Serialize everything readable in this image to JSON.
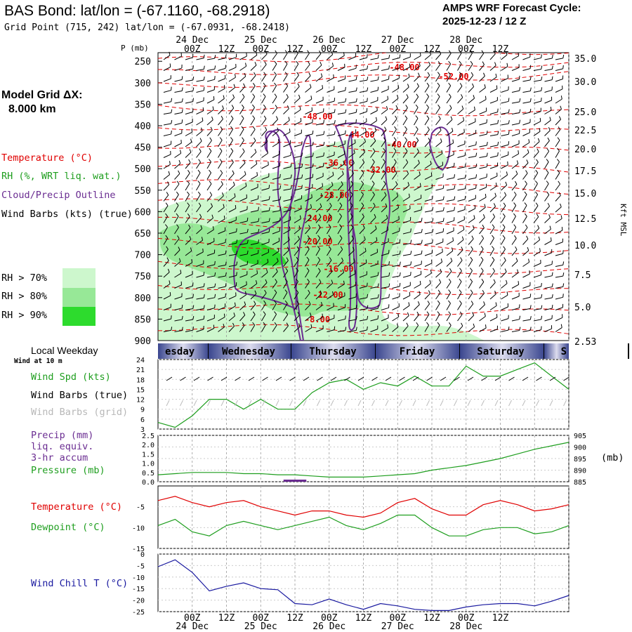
{
  "header": {
    "title": "BAS Bond:  lat/lon = (-67.1160, -68.2918)",
    "grid_point": "Grid Point (715, 242) lat/lon = (-67.0931, -68.2418)",
    "cycle_label": "AMPS WRF Forecast Cycle:",
    "cycle_value": "2025-12-23 / 12  Z",
    "model_grid_label": "Model Grid ΔX:",
    "model_grid_value": "8.000 km"
  },
  "legend": {
    "temperature": "Temperature (°C)",
    "rh": "RH (%, WRT liq. wat.)",
    "cloud": "Cloud/Precip Outline",
    "wind_barbs": "Wind Barbs (kts) (true)",
    "rh70": "RH > 70%",
    "rh80": "RH > 80%",
    "rh90": "RH > 90%",
    "colors": {
      "rh70": "#cdf7cd",
      "rh80": "#97e897",
      "rh90": "#2ddb2d",
      "temp": "#e00000",
      "cloud": "#6a2c91",
      "wind": "#1e9e1e",
      "wind_chill": "#1a1aa0"
    }
  },
  "time_axis": {
    "top_labels": [
      "24 Dec",
      "25 Dec",
      "26 Dec",
      "27 Dec",
      "28 Dec"
    ],
    "hour_labels": [
      "00Z",
      "12Z",
      "00Z",
      "12Z",
      "00Z",
      "12Z",
      "00Z",
      "12Z",
      "00Z",
      "12Z"
    ],
    "weekday_label": "Local Weekday",
    "weekdays": [
      "Tuesday",
      "Wednesday",
      "Thursday",
      "Friday",
      "Saturday",
      "Sunday"
    ],
    "weekday_visible": [
      "esday",
      "Wednesday",
      "Thursday",
      "Friday",
      "Saturday",
      "S"
    ],
    "wind_at": "Wind at 10 m"
  },
  "chart_data": [
    {
      "type": "contour",
      "title": "Vertical cross-section time series",
      "ylabel": "P (mb)",
      "y2label": "Kft MSL",
      "pressure_ticks": [
        250,
        300,
        350,
        400,
        450,
        500,
        550,
        600,
        650,
        700,
        750,
        800,
        850,
        900
      ],
      "kft_ticks": [
        "35.0",
        "30.0",
        "25.0",
        "22.5",
        "20.0",
        "17.5",
        "15.0",
        "12.5",
        "10.0",
        "7.5",
        "5.0",
        "2.53"
      ],
      "temperature_contour_labels": [
        "-48.00",
        "-52.00",
        "-48.00",
        "-44.00",
        "-40.00",
        "-36.00",
        "-32.00",
        "-28.00",
        "-24.00",
        "-20.00",
        "-16.00",
        "-12.00",
        "-8.00"
      ],
      "ylim": [
        900,
        230
      ]
    },
    {
      "type": "line",
      "title": "Wind Spd (kts)",
      "legend": [
        "Wind Spd (kts)",
        "Wind Barbs (true)",
        "Wind Barbs (grid)"
      ],
      "yticks": [
        3,
        6,
        9,
        12,
        15,
        18,
        21,
        24
      ],
      "ylim": [
        3,
        24
      ],
      "x_hours": [
        0,
        6,
        12,
        18,
        24,
        30,
        36,
        42,
        48,
        54,
        60,
        66,
        72,
        78,
        84,
        90,
        96,
        102,
        108,
        114,
        120,
        126,
        132,
        138,
        144
      ],
      "values": [
        5,
        3.5,
        7,
        12,
        12,
        9,
        12,
        9,
        9,
        14,
        17,
        18,
        15,
        17,
        16,
        19,
        16,
        16,
        22,
        19,
        19,
        21,
        23,
        19,
        15
      ]
    },
    {
      "type": "line",
      "title": "Precip (mm) / Pressure (mb)",
      "legend": [
        "Precip (mm)",
        "liq. equiv.",
        "3-hr accum",
        "Pressure (mb)"
      ],
      "precip_ticks": [
        "0.0",
        "0.5",
        "1.0",
        "1.5",
        "2.0",
        "2.5"
      ],
      "pressure_ticks": [
        "885",
        "890",
        "895",
        "900",
        "905"
      ],
      "pressure_unit": "(mb)",
      "x_hours": [
        0,
        6,
        12,
        18,
        24,
        30,
        36,
        42,
        48,
        54,
        60,
        66,
        72,
        78,
        84,
        90,
        96,
        102,
        108,
        114,
        120,
        126,
        132,
        138,
        144
      ],
      "pressure": [
        888,
        888.5,
        889,
        889,
        889,
        888.5,
        888.5,
        888,
        888,
        887.5,
        887,
        887,
        887,
        887.5,
        888,
        888.5,
        890,
        891,
        892,
        893.5,
        895,
        897,
        899,
        900.5,
        902
      ],
      "precip": [
        0,
        0,
        0,
        0,
        0,
        0,
        0,
        0,
        0.1,
        0,
        0,
        0,
        0,
        0,
        0,
        0,
        0,
        0,
        0,
        0,
        0,
        0,
        0,
        0,
        0
      ]
    },
    {
      "type": "line",
      "title": "Temperature / Dewpoint",
      "legend": [
        "Temperature (°C)",
        "Dewpoint (°C)"
      ],
      "yticks": [
        -15,
        -10,
        -5
      ],
      "ylim": [
        -15,
        0
      ],
      "x_hours": [
        0,
        6,
        12,
        18,
        24,
        30,
        36,
        42,
        48,
        54,
        60,
        66,
        72,
        78,
        84,
        90,
        96,
        102,
        108,
        114,
        120,
        126,
        132,
        138,
        144
      ],
      "temperature": [
        -3.5,
        -2.5,
        -4,
        -5,
        -4,
        -3.5,
        -5,
        -6,
        -7,
        -6,
        -6,
        -7,
        -7.5,
        -6.5,
        -4,
        -3,
        -5.5,
        -7,
        -7,
        -4.5,
        -3.5,
        -4.5,
        -6,
        -5.5,
        -4.5
      ],
      "dewpoint": [
        -9.5,
        -8,
        -11,
        -12,
        -9.5,
        -8.5,
        -9.5,
        -10.5,
        -9.5,
        -8.5,
        -7.5,
        -9.5,
        -10.5,
        -9,
        -7,
        -7,
        -10,
        -12,
        -12,
        -10.5,
        -10,
        -10,
        -11.5,
        -11,
        -9.5
      ]
    },
    {
      "type": "line",
      "title": "Wind Chill T (°C)",
      "legend": [
        "Wind Chill T (°C)"
      ],
      "yticks": [
        -25,
        -20,
        -15,
        -10,
        -5,
        0
      ],
      "ylim": [
        -25,
        0
      ],
      "x_hours": [
        0,
        6,
        12,
        18,
        24,
        30,
        36,
        42,
        48,
        54,
        60,
        66,
        72,
        78,
        84,
        90,
        96,
        102,
        108,
        114,
        120,
        126,
        132,
        138,
        144
      ],
      "values": [
        -5.5,
        -2.5,
        -8,
        -16,
        -14,
        -12.5,
        -15,
        -15.5,
        -21.5,
        -22,
        -19.5,
        -22,
        -24,
        -21.5,
        -22.5,
        -24,
        -24.5,
        -24.5,
        -23,
        -22,
        -21.5,
        -21.5,
        -22.5,
        -20.5,
        -18
      ]
    }
  ]
}
